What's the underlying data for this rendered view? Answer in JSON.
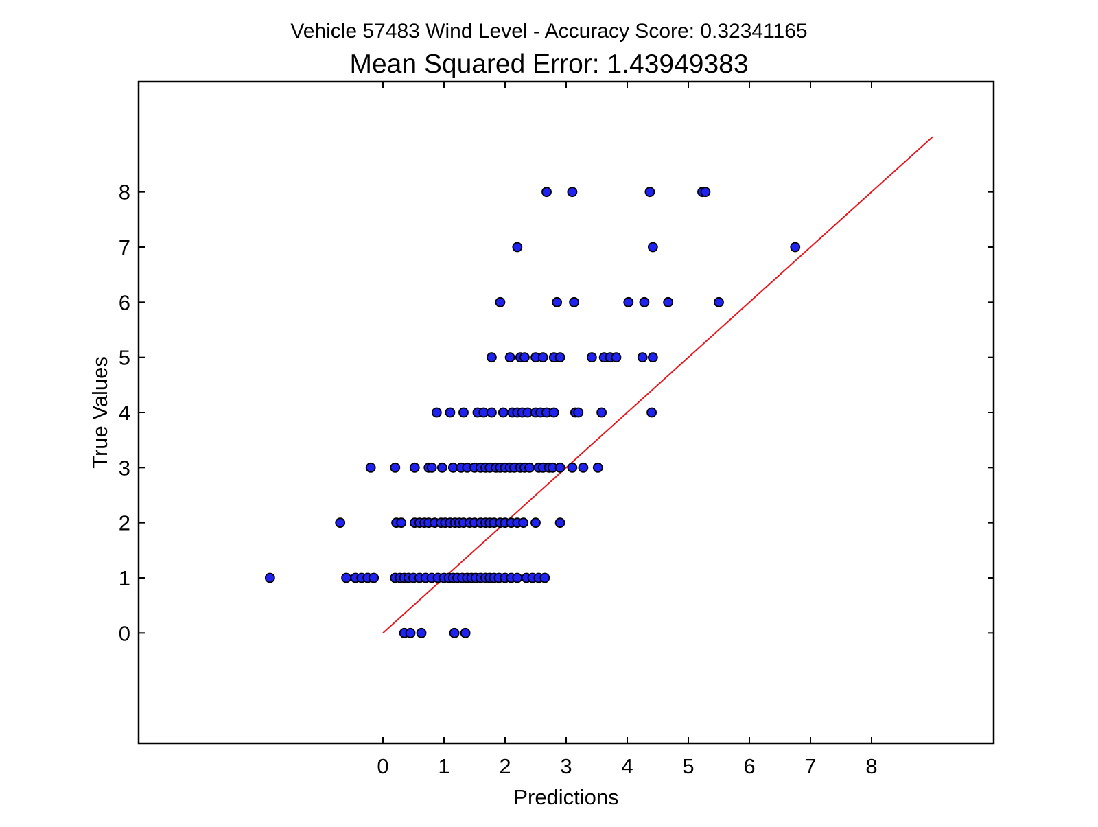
{
  "chart_data": {
    "type": "scatter",
    "title": "Vehicle 57483 Wind Level - Accuracy Score: 0.32341165",
    "subtitle": "Mean Squared Error: 1.43949383",
    "xlabel": "Predictions",
    "ylabel": "True Values",
    "xlim": [
      -4,
      10
    ],
    "ylim": [
      -2,
      10
    ],
    "x_ticks": [
      0,
      1,
      2,
      3,
      4,
      5,
      6,
      7,
      8
    ],
    "y_ticks": [
      0,
      1,
      2,
      3,
      4,
      5,
      6,
      7,
      8
    ],
    "grid": false,
    "legend": "none",
    "colors": {
      "points": "#1f22f0",
      "point_edge": "#000000",
      "reference_line": "#e8161c",
      "axes": "#000000"
    },
    "reference_line": {
      "x": [
        0,
        9
      ],
      "y": [
        0,
        9
      ]
    },
    "series": [
      {
        "x": [
          0.35,
          0.45,
          0.63,
          1.17,
          1.35,
          -1.85,
          -0.6,
          -0.45,
          -0.35,
          -0.25,
          -0.15,
          0.2,
          0.28,
          0.35,
          0.42,
          0.5,
          0.6,
          0.7,
          0.8,
          0.9,
          1.0,
          1.08,
          1.15,
          1.22,
          1.3,
          1.38,
          1.45,
          1.52,
          1.6,
          1.68,
          1.75,
          1.82,
          1.9,
          2.0,
          2.1,
          2.2,
          2.35,
          2.45,
          2.55,
          2.65,
          -0.7,
          0.22,
          0.3,
          0.52,
          0.6,
          0.68,
          0.75,
          0.85,
          0.95,
          1.02,
          1.1,
          1.18,
          1.25,
          1.32,
          1.42,
          1.5,
          1.6,
          1.68,
          1.75,
          1.82,
          1.92,
          2.0,
          2.1,
          2.2,
          2.3,
          2.5,
          2.9,
          -0.2,
          0.2,
          0.52,
          0.75,
          0.8,
          0.97,
          1.15,
          1.28,
          1.38,
          1.5,
          1.6,
          1.68,
          1.75,
          1.85,
          1.92,
          2.0,
          2.08,
          2.15,
          2.25,
          2.32,
          2.4,
          2.55,
          2.62,
          2.72,
          2.78,
          2.9,
          3.1,
          3.28,
          3.52,
          0.88,
          1.1,
          1.32,
          1.55,
          1.65,
          1.78,
          1.97,
          2.12,
          2.2,
          2.28,
          2.37,
          2.5,
          2.58,
          2.68,
          2.8,
          3.15,
          3.2,
          3.58,
          4.4,
          1.78,
          2.08,
          2.25,
          2.32,
          2.5,
          2.62,
          2.8,
          2.9,
          3.42,
          3.62,
          3.72,
          3.82,
          4.25,
          4.42,
          1.92,
          2.85,
          3.13,
          4.02,
          4.28,
          4.67,
          5.5,
          2.2,
          4.42,
          6.75,
          2.68,
          3.1,
          4.37,
          5.23,
          5.28
        ],
        "y": [
          0,
          0,
          0,
          0,
          0,
          1,
          1,
          1,
          1,
          1,
          1,
          1,
          1,
          1,
          1,
          1,
          1,
          1,
          1,
          1,
          1,
          1,
          1,
          1,
          1,
          1,
          1,
          1,
          1,
          1,
          1,
          1,
          1,
          1,
          1,
          1,
          1,
          1,
          1,
          1,
          2,
          2,
          2,
          2,
          2,
          2,
          2,
          2,
          2,
          2,
          2,
          2,
          2,
          2,
          2,
          2,
          2,
          2,
          2,
          2,
          2,
          2,
          2,
          2,
          2,
          2,
          2,
          3,
          3,
          3,
          3,
          3,
          3,
          3,
          3,
          3,
          3,
          3,
          3,
          3,
          3,
          3,
          3,
          3,
          3,
          3,
          3,
          3,
          3,
          3,
          3,
          3,
          3,
          3,
          3,
          3,
          4,
          4,
          4,
          4,
          4,
          4,
          4,
          4,
          4,
          4,
          4,
          4,
          4,
          4,
          4,
          4,
          4,
          4,
          4,
          5,
          5,
          5,
          5,
          5,
          5,
          5,
          5,
          5,
          5,
          5,
          5,
          5,
          5,
          6,
          6,
          6,
          6,
          6,
          6,
          6,
          7,
          7,
          7,
          8,
          8,
          8,
          8,
          8
        ]
      }
    ]
  }
}
